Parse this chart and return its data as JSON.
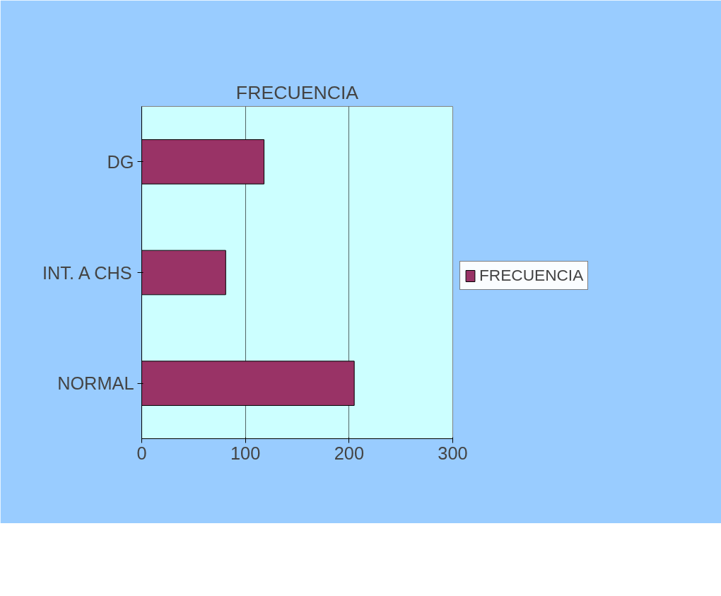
{
  "chart_data": {
    "type": "bar",
    "title": "FRECUENCIA",
    "orientation": "horizontal",
    "categories": [
      "DG",
      "INT. A CHS",
      "NORMAL"
    ],
    "series": [
      {
        "name": "FRECUENCIA",
        "color": "#993366",
        "values": [
          118,
          81,
          205
        ]
      }
    ],
    "xlim": [
      0,
      300
    ],
    "xticks": [
      0,
      100,
      200,
      300
    ],
    "grid": "x",
    "legend": "right"
  }
}
